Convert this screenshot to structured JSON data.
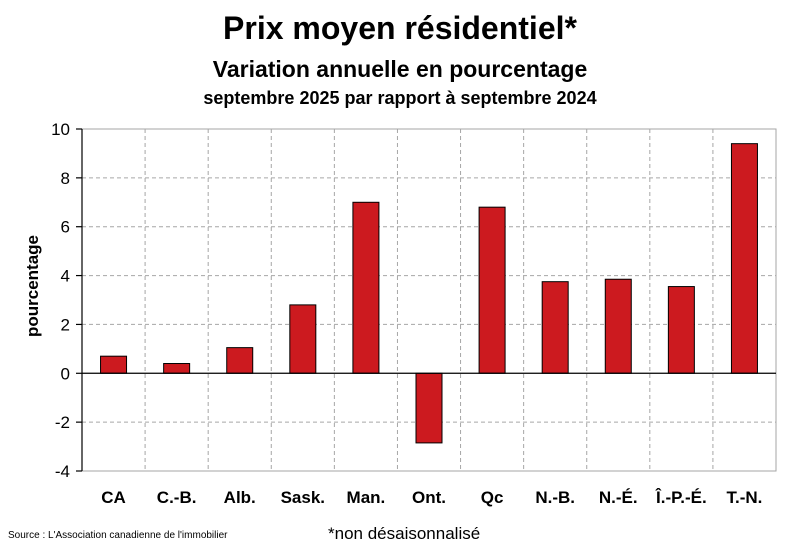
{
  "chart_data": {
    "type": "bar",
    "title": "Prix moyen résidentiel*",
    "subtitle": "Variation annuelle en pourcentage",
    "subtitle2": "septembre 2025 par rapport à septembre 2024",
    "ylabel": "pourcentage",
    "xlabel": "",
    "ylim": [
      -4,
      10
    ],
    "yticks": [
      -4,
      -2,
      0,
      2,
      4,
      6,
      8,
      10
    ],
    "grid": true,
    "bar_color": "#cc1a1f",
    "categories": [
      "CA",
      "C.-B.",
      "Alb.",
      "Sask.",
      "Man.",
      "Ont.",
      "Qc",
      "N.-B.",
      "N.-É.",
      "Î.-P.-É.",
      "T.-N."
    ],
    "values": [
      0.7,
      0.4,
      1.05,
      2.8,
      7.0,
      -2.85,
      6.8,
      3.75,
      3.85,
      3.55,
      9.4
    ]
  },
  "footer": {
    "source": "Source : L'Association canadienne de l'immobilier",
    "note": "*non désaisonnalisé"
  }
}
